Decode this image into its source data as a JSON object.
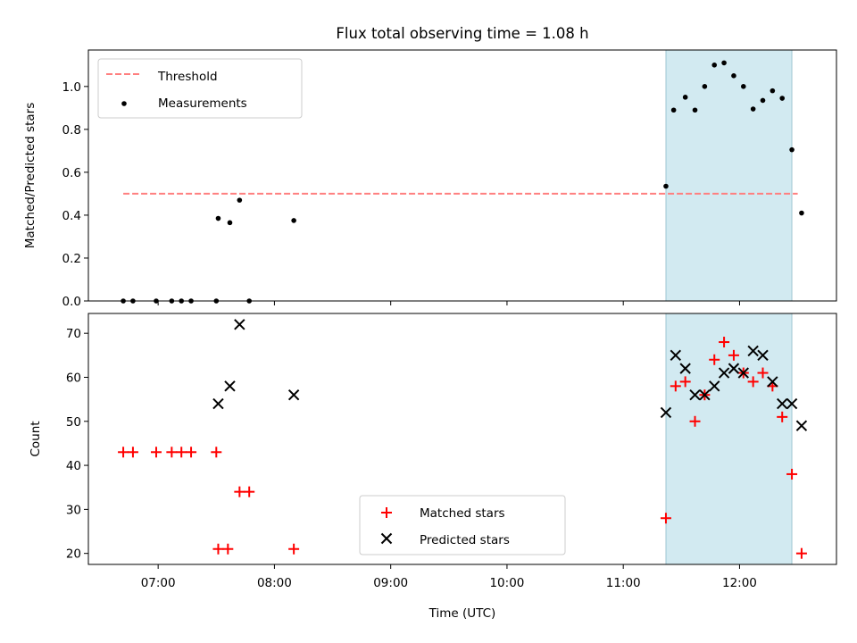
{
  "chart_data": [
    {
      "type": "scatter",
      "title": "Flux total observing time = 1.08 h",
      "xlabel": "",
      "ylabel": "Matched/Predicted stars",
      "xlim": [
        "06:24",
        "12:50"
      ],
      "ylim": [
        0,
        1.17
      ],
      "yticks": [
        0.0,
        0.2,
        0.4,
        0.6,
        0.8,
        1.0
      ],
      "ytick_labels": [
        "0.0",
        "0.2",
        "0.4",
        "0.6",
        "0.8",
        "1.0"
      ],
      "grid": false,
      "legend_position": "top-left",
      "shaded_region": {
        "x": [
          "11:22",
          "12:27"
        ],
        "color": "#add8e6"
      },
      "threshold": {
        "name": "Threshold",
        "y": 0.5,
        "x": [
          "06:42",
          "12:30"
        ],
        "color": "#ff7f7f",
        "style": "dashed"
      },
      "series": [
        {
          "name": "Measurements",
          "marker": "dot",
          "color": "#000000",
          "x": [
            "06:42",
            "06:47",
            "06:59",
            "07:07",
            "07:12",
            "07:17",
            "07:30",
            "07:31",
            "07:37",
            "07:42",
            "07:47",
            "08:10",
            "11:22",
            "11:26",
            "11:32",
            "11:37",
            "11:42",
            "11:47",
            "11:52",
            "11:57",
            "12:02",
            "12:07",
            "12:12",
            "12:17",
            "12:22",
            "12:27",
            "12:32"
          ],
          "y": [
            0.0,
            0.0,
            0.0,
            0.0,
            0.0,
            0.0,
            0.0,
            0.385,
            0.365,
            0.47,
            0.0,
            0.375,
            0.535,
            0.89,
            0.95,
            0.89,
            1.0,
            1.1,
            1.11,
            1.05,
            1.0,
            0.895,
            0.935,
            0.98,
            0.945,
            0.705,
            0.41
          ]
        }
      ]
    },
    {
      "type": "scatter",
      "title": "",
      "xlabel": "Time (UTC)",
      "ylabel": "Count",
      "xlim": [
        "06:24",
        "12:50"
      ],
      "ylim": [
        17.5,
        74.5
      ],
      "xticks": [
        "07:00",
        "08:00",
        "09:00",
        "10:00",
        "11:00",
        "12:00"
      ],
      "xtick_labels": [
        "07:00",
        "08:00",
        "09:00",
        "10:00",
        "11:00",
        "12:00"
      ],
      "yticks": [
        20,
        30,
        40,
        50,
        60,
        70
      ],
      "ytick_labels": [
        "20",
        "30",
        "40",
        "50",
        "60",
        "70"
      ],
      "grid": false,
      "legend_position": "bottom-center",
      "shaded_region": {
        "x": [
          "11:22",
          "12:27"
        ],
        "color": "#add8e6"
      },
      "series": [
        {
          "name": "Matched stars",
          "marker": "plus",
          "color": "#ff0000",
          "x": [
            "06:42",
            "06:47",
            "06:59",
            "07:07",
            "07:12",
            "07:17",
            "07:30",
            "07:31",
            "07:36",
            "07:42",
            "07:47",
            "08:10",
            "11:22",
            "11:27",
            "11:32",
            "11:37",
            "11:42",
            "11:47",
            "11:52",
            "11:57",
            "12:02",
            "12:07",
            "12:12",
            "12:17",
            "12:22",
            "12:27",
            "12:32"
          ],
          "y": [
            43,
            43,
            43,
            43,
            43,
            43,
            43,
            21,
            21,
            34,
            34,
            21,
            28,
            58,
            59,
            50,
            56,
            64,
            68,
            65,
            61,
            59,
            61,
            58,
            51,
            38,
            20
          ]
        },
        {
          "name": "Predicted stars",
          "marker": "x",
          "color": "#000000",
          "x": [
            "07:31",
            "07:37",
            "07:42",
            "08:10",
            "11:22",
            "11:27",
            "11:32",
            "11:37",
            "11:42",
            "11:47",
            "11:52",
            "11:57",
            "12:02",
            "12:07",
            "12:12",
            "12:17",
            "12:22",
            "12:27",
            "12:32"
          ],
          "y": [
            54,
            58,
            72,
            56,
            52,
            65,
            62,
            56,
            56,
            58,
            61,
            62,
            61,
            66,
            65,
            59,
            54,
            54,
            49
          ]
        }
      ]
    }
  ]
}
